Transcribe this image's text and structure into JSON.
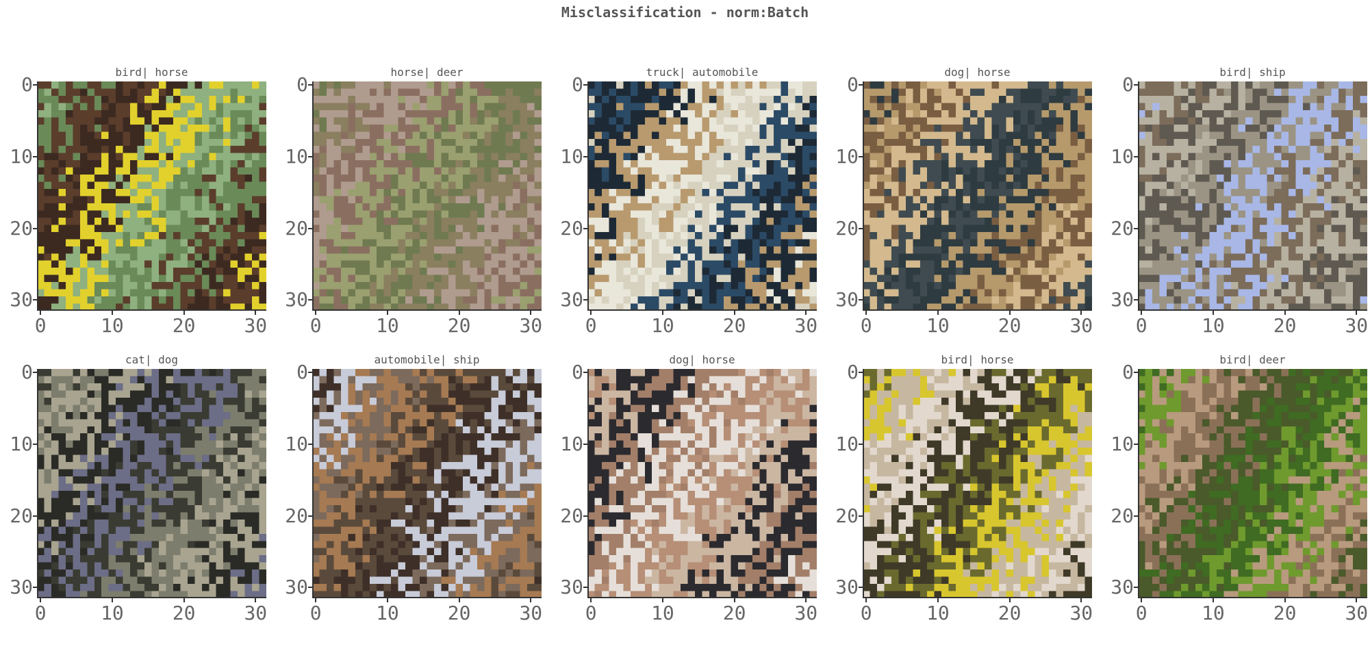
{
  "figure": {
    "title": "Misclassification - norm:Batch"
  },
  "axis": {
    "x_ticks": [
      "0",
      "10",
      "20",
      "30"
    ],
    "y_ticks": [
      "0",
      "10",
      "20",
      "30"
    ],
    "pixel_range": [
      0,
      31
    ]
  },
  "panels": [
    {
      "title": "bird| horse",
      "colors": [
        "#8fb07f",
        "#6a8a58",
        "#5b3d2c",
        "#3c2a21",
        "#e2d12c"
      ]
    },
    {
      "title": "horse| deer",
      "colors": [
        "#6f7a50",
        "#8a7f5f",
        "#b09b8f",
        "#8a6f61",
        "#9aa06f"
      ]
    },
    {
      "title": "truck| automobile",
      "colors": [
        "#d7d2bf",
        "#2b4a66",
        "#1d2a36",
        "#b89a6e",
        "#e9e6da"
      ]
    },
    {
      "title": "dog| horse",
      "colors": [
        "#2e3b40",
        "#b69a6c",
        "#7a5e42",
        "#d3b98d",
        "#3f4b50"
      ]
    },
    {
      "title": "bird| ship",
      "colors": [
        "#a8b7e6",
        "#7c6c5a",
        "#b7b1a1",
        "#5f5a51",
        "#9b9484"
      ]
    },
    {
      "title": "cat| dog",
      "colors": [
        "#3a3b32",
        "#7d7d6d",
        "#a8a490",
        "#2a2b26",
        "#6c6d86"
      ]
    },
    {
      "title": "automobile| ship",
      "colors": [
        "#3e3028",
        "#c8cbd8",
        "#7c6a5c",
        "#a67a52",
        "#5a4a3c"
      ]
    },
    {
      "title": "dog| horse",
      "colors": [
        "#b68f76",
        "#cbb6a2",
        "#2b2a2f",
        "#a37f69",
        "#e6dfd9"
      ]
    },
    {
      "title": "bird| horse",
      "colors": [
        "#6a6a2e",
        "#d8c62e",
        "#c6b7a0",
        "#e2d8cd",
        "#3f3a28"
      ]
    },
    {
      "title": "bird| deer",
      "colors": [
        "#3f6b22",
        "#6f9a2e",
        "#b89a7e",
        "#8b7058",
        "#4a5a2a"
      ]
    }
  ]
}
